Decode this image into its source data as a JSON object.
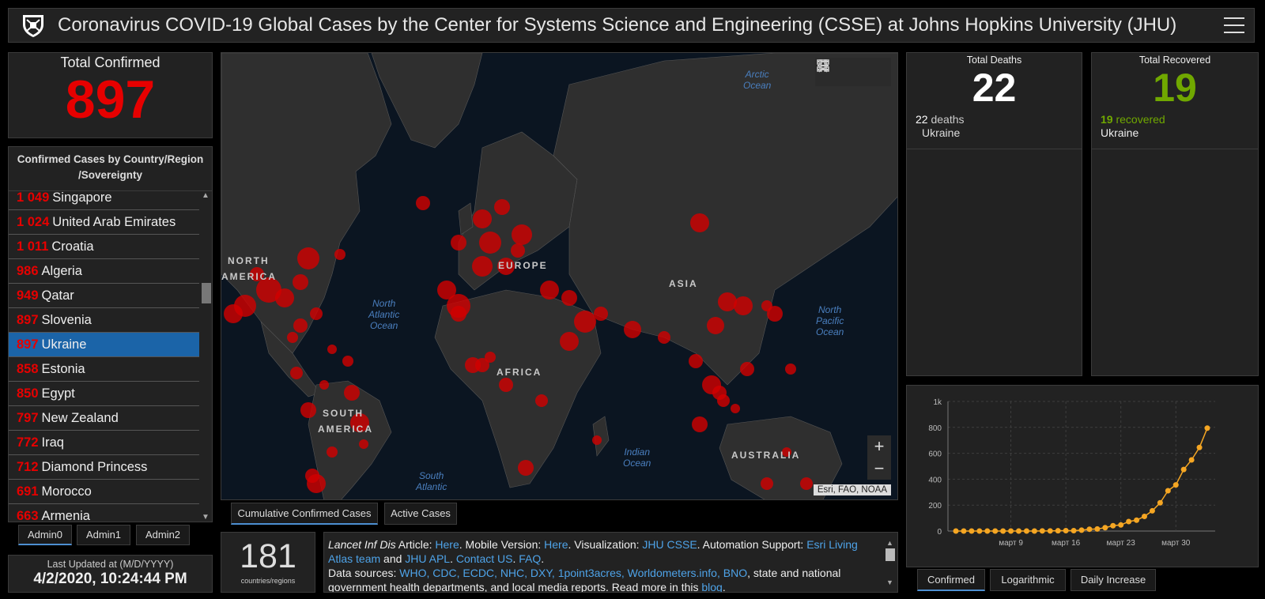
{
  "header": {
    "title": "Coronavirus COVID-19 Global Cases by the Center for Systems Science and Engineering (CSSE) at Johns Hopkins University (JHU)"
  },
  "total_confirmed": {
    "label": "Total Confirmed",
    "value": "897"
  },
  "country_list": {
    "title_line1": "Confirmed Cases by Country/Region",
    "title_line2": "/Sovereignty",
    "rows": [
      {
        "count": "1 049",
        "name": "Singapore"
      },
      {
        "count": "1 024",
        "name": "United Arab Emirates"
      },
      {
        "count": "1 011",
        "name": "Croatia"
      },
      {
        "count": "986",
        "name": "Algeria"
      },
      {
        "count": "949",
        "name": "Qatar"
      },
      {
        "count": "897",
        "name": "Slovenia"
      },
      {
        "count": "897",
        "name": "Ukraine"
      },
      {
        "count": "858",
        "name": "Estonia"
      },
      {
        "count": "850",
        "name": "Egypt"
      },
      {
        "count": "797",
        "name": "New Zealand"
      },
      {
        "count": "772",
        "name": "Iraq"
      },
      {
        "count": "712",
        "name": "Diamond Princess"
      },
      {
        "count": "691",
        "name": "Morocco"
      },
      {
        "count": "663",
        "name": "Armenia"
      }
    ]
  },
  "admin_tabs": [
    "Admin0",
    "Admin1",
    "Admin2"
  ],
  "last_updated": {
    "label": "Last Updated at (M/D/YYYY)",
    "value": "4/2/2020, 10:24:44 PM"
  },
  "map": {
    "region_labels": [
      "NORTH",
      "AMERICA",
      "EUROPE",
      "ASIA",
      "AFRICA",
      "SOUTH",
      "AMERICA",
      "AUSTRALIA"
    ],
    "ocean_labels": [
      "Arctic",
      "Ocean",
      "North",
      "Atlantic",
      "Ocean",
      "North",
      "Pacific",
      "Ocean",
      "Indian",
      "Ocean",
      "South",
      "Atlantic"
    ],
    "attribution": "Esri, FAO, NOAA",
    "zoom_in": "+",
    "zoom_out": "−"
  },
  "map_tabs": [
    "Cumulative Confirmed Cases",
    "Active Cases"
  ],
  "countries_count": {
    "value": "181",
    "label": "countries/regions"
  },
  "info": {
    "journal": "Lancet Inf Dis",
    "article_label": " Article: ",
    "here1": "Here",
    "mobile_label": ". Mobile Version: ",
    "here2": "Here",
    "viz_label": ". Visualization: ",
    "jhu_csse": "JHU CSSE",
    "automation_label": ". Automation Support: ",
    "esri_team": "Esri Living Atlas team",
    "and": " and ",
    "jhu_apl": "JHU APL",
    "sep1": ". ",
    "contact": "Contact US",
    "sep2": ". ",
    "faq": "FAQ",
    "sep3": ".",
    "sources_label": "Data sources: ",
    "sources": "WHO, CDC, ECDC, NHC, DXY, 1point3acres, Worldometers.info, BNO",
    "sources_rest": ", state and national government health departments, and local media reports.  Read more in this ",
    "blog": "blog",
    "end": "."
  },
  "deaths": {
    "label": "Total Deaths",
    "value": "22",
    "detail_count": "22",
    "detail_word": " deaths",
    "detail_country": "Ukraine",
    "color": "#ffffff"
  },
  "recovered": {
    "label": "Total Recovered",
    "value": "19",
    "detail_count": "19",
    "detail_word": " recovered",
    "detail_country": "Ukraine",
    "color": "#70a800"
  },
  "chart_tabs": [
    "Confirmed",
    "Logarithmic",
    "Daily Increase"
  ],
  "chart_data": {
    "type": "line",
    "y_tick_labels": [
      "0",
      "200",
      "400",
      "600",
      "800",
      "1k"
    ],
    "ylim": [
      0,
      1000
    ],
    "x_tick_labels": [
      "март 9",
      "март 16",
      "март 23",
      "март 30"
    ],
    "x_tick_indices": [
      7,
      14,
      21,
      28
    ],
    "series": [
      {
        "values": [
          0,
          0,
          0,
          0,
          0,
          0,
          0,
          0,
          0,
          0,
          0,
          1,
          1,
          2,
          3,
          3,
          7,
          14,
          16,
          26,
          41,
          47,
          73,
          84,
          113,
          156,
          218,
          311,
          356,
          475,
          549,
          645,
          794
        ]
      }
    ],
    "color": "#f5a623",
    "grid": true
  }
}
